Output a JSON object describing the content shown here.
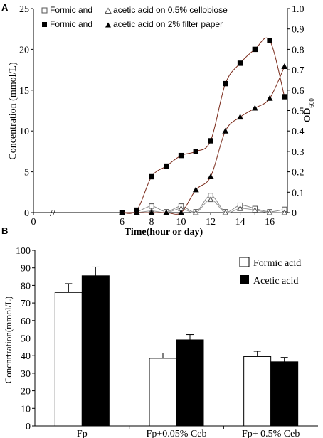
{
  "chart_data": [
    {
      "panel": "A",
      "type": "line",
      "xlabel": "Time(hour or day)",
      "ylabel_left": "Concentration (mmol/L)",
      "ylabel_right": "OD",
      "ylabel_right_sub": "600",
      "x_ticks": [
        0,
        6,
        8,
        10,
        12,
        14,
        16
      ],
      "y_left_ticks": [
        0,
        5,
        10,
        15,
        20,
        25
      ],
      "y_right_ticks": [
        "0",
        "0.1",
        "0.2",
        "0.3",
        "0.4",
        "0.5",
        "0.6",
        "0.7",
        "0.8",
        "0.9",
        "1.0"
      ],
      "xlim": [
        0,
        17.2
      ],
      "ylim_left": [
        0,
        25
      ],
      "ylim_right": [
        0,
        1.0
      ],
      "axis_break": "//",
      "legend": [
        {
          "text_a": "Formic  and",
          "text_b": "acetic acid on 0.5% cellobiose"
        },
        {
          "text_a": "Formic  and",
          "text_b": "acetic acid on 2% filter paper"
        }
      ],
      "series": [
        {
          "marker": "square-open",
          "x": [
            6,
            7,
            8,
            9,
            10,
            11,
            12,
            13,
            14,
            15,
            16,
            17
          ],
          "y": [
            0,
            0.1,
            0.8,
            0.1,
            0.8,
            0.1,
            2.1,
            0.1,
            0.9,
            0.5,
            0.1,
            0.4
          ]
        },
        {
          "marker": "triangle-open",
          "x": [
            6,
            7,
            8,
            9,
            10,
            11,
            12,
            13,
            14,
            15,
            16,
            17
          ],
          "y": [
            0,
            0,
            0.2,
            0,
            0.5,
            0,
            1.6,
            0,
            0.5,
            0.3,
            0,
            0
          ]
        },
        {
          "marker": "square-filled",
          "x": [
            6,
            7,
            8,
            9,
            10,
            11,
            12,
            13,
            14,
            15,
            16,
            17
          ],
          "y": [
            0,
            0.3,
            4.4,
            5.7,
            7.0,
            7.5,
            8.8,
            15.8,
            18.3,
            20.0,
            21.1,
            14.2
          ]
        },
        {
          "marker": "triangle-filled",
          "x": [
            6,
            7,
            8,
            9,
            10,
            11,
            12,
            13,
            14,
            15,
            16,
            17
          ],
          "y": [
            0,
            0,
            0,
            0,
            0,
            2.8,
            4.4,
            10.0,
            11.7,
            12.8,
            14.0,
            17.9
          ]
        }
      ]
    },
    {
      "panel": "B",
      "type": "bar",
      "ylabel": "Concnrtration(mmol/L)",
      "categories": [
        "Fp",
        "Fp+0.05% Ceb",
        "Fp+ 0.5% Ceb"
      ],
      "ylim": [
        0,
        100
      ],
      "y_ticks": [
        0,
        10,
        20,
        30,
        40,
        50,
        60,
        70,
        80,
        90,
        100
      ],
      "legend_placement": "top-right",
      "series": [
        {
          "name": "Formic acid",
          "fill": "white",
          "values": [
            76,
            38.5,
            39.5
          ],
          "errors": [
            5,
            3,
            3
          ]
        },
        {
          "name": "Acetic acid",
          "fill": "black",
          "values": [
            85.5,
            49,
            36.5
          ],
          "errors": [
            5,
            3,
            2.5
          ]
        }
      ]
    }
  ]
}
